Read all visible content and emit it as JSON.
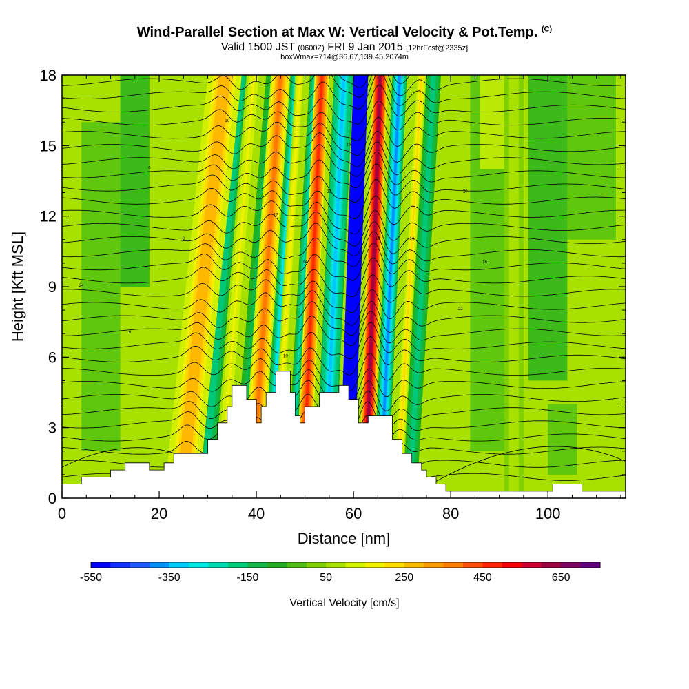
{
  "header": {
    "title": "Wind-Parallel Section at Max W: Vertical Velocity & Pot.Temp.",
    "copyright": "(C)",
    "valid_prefix": "Valid 1500 JST",
    "valid_utc": "(0600Z)",
    "valid_date": "FRI 9 Jan 2015",
    "forecast": "[12hrFcst@2335z]",
    "box_info": "boxWmax=714@36.67,139.45,2074m"
  },
  "chart_data": {
    "type": "heatmap",
    "xlabel": "Distance [nm]",
    "ylabel": "Height [Kft MSL]",
    "xlim": [
      0,
      116
    ],
    "ylim": [
      0,
      18
    ],
    "x_ticks": [
      0,
      20,
      40,
      60,
      80,
      100
    ],
    "y_ticks": [
      0,
      3,
      6,
      9,
      12,
      15,
      18
    ],
    "terrain": [
      [
        0,
        0.6
      ],
      [
        4,
        0.6
      ],
      [
        4,
        0.9
      ],
      [
        10,
        0.9
      ],
      [
        10,
        1.2
      ],
      [
        13,
        1.2
      ],
      [
        13,
        1.5
      ],
      [
        18,
        1.5
      ],
      [
        18,
        1.2
      ],
      [
        21,
        1.2
      ],
      [
        21,
        1.5
      ],
      [
        23,
        1.5
      ],
      [
        23,
        1.9
      ],
      [
        30,
        1.9
      ],
      [
        30,
        2.5
      ],
      [
        32,
        2.5
      ],
      [
        32,
        3.2
      ],
      [
        34,
        3.2
      ],
      [
        34,
        3.9
      ],
      [
        35,
        3.9
      ],
      [
        35,
        4.8
      ],
      [
        38,
        4.8
      ],
      [
        38,
        4.2
      ],
      [
        40,
        4.2
      ],
      [
        40,
        3.2
      ],
      [
        41,
        3.2
      ],
      [
        41,
        3.9
      ],
      [
        42,
        3.9
      ],
      [
        42,
        4.5
      ],
      [
        44,
        4.5
      ],
      [
        44,
        5.4
      ],
      [
        47,
        5.4
      ],
      [
        47,
        4.5
      ],
      [
        48,
        4.5
      ],
      [
        48,
        3.5
      ],
      [
        49,
        3.5
      ],
      [
        49,
        3.2
      ],
      [
        50,
        3.2
      ],
      [
        50,
        3.9
      ],
      [
        53,
        3.9
      ],
      [
        53,
        4.5
      ],
      [
        57,
        4.5
      ],
      [
        57,
        4.8
      ],
      [
        59,
        4.8
      ],
      [
        59,
        4.2
      ],
      [
        61,
        4.2
      ],
      [
        61,
        3.2
      ],
      [
        63,
        3.2
      ],
      [
        63,
        3.5
      ],
      [
        68,
        3.5
      ],
      [
        68,
        2.5
      ],
      [
        70,
        2.5
      ],
      [
        70,
        1.9
      ],
      [
        72,
        1.9
      ],
      [
        72,
        1.5
      ],
      [
        74,
        1.5
      ],
      [
        74,
        1.2
      ],
      [
        75,
        1.2
      ],
      [
        75,
        0.9
      ],
      [
        77,
        0.9
      ],
      [
        77,
        0.6
      ],
      [
        79,
        0.6
      ],
      [
        79,
        0.3
      ],
      [
        101,
        0.3
      ],
      [
        101,
        0.6
      ],
      [
        107,
        0.6
      ],
      [
        107,
        0.3
      ],
      [
        116,
        0.3
      ]
    ],
    "updraft_bands": [
      {
        "x0": 21,
        "x1": 28,
        "tilt": 9,
        "w": 320
      },
      {
        "x0": 31,
        "x1": 34,
        "tilt": 7,
        "w": 180
      },
      {
        "x0": 37,
        "x1": 41,
        "tilt": 6,
        "w": 420
      },
      {
        "x0": 43,
        "x1": 45,
        "tilt": 5,
        "w": 200
      },
      {
        "x0": 48,
        "x1": 51,
        "tilt": 4,
        "w": 560
      },
      {
        "x0": 61,
        "x1": 64,
        "tilt": 3,
        "w": 714
      },
      {
        "x0": 68,
        "x1": 70,
        "tilt": 5,
        "w": 250
      },
      {
        "x0": 91,
        "x1": 95,
        "tilt": 0,
        "w": 80
      }
    ],
    "downdraft_bands": [
      {
        "x0": 27,
        "x1": 31,
        "tilt": 8,
        "w": -200
      },
      {
        "x0": 35,
        "x1": 38,
        "tilt": 7,
        "w": -150
      },
      {
        "x0": 41,
        "x1": 44,
        "tilt": 6,
        "w": -320
      },
      {
        "x0": 46,
        "x1": 48,
        "tilt": 5,
        "w": -250
      },
      {
        "x0": 52,
        "x1": 56,
        "tilt": 4,
        "w": -350
      },
      {
        "x0": 57,
        "x1": 60,
        "tilt": 3,
        "w": -560
      },
      {
        "x0": 64,
        "x1": 67,
        "tilt": 4,
        "w": -400
      },
      {
        "x0": 70,
        "x1": 73,
        "tilt": 5,
        "w": -200
      }
    ],
    "theta_label_values": [
      "6",
      "8",
      "10",
      "12",
      "14",
      "16",
      "18",
      "20",
      "22",
      "24"
    ],
    "colorbar": {
      "title": "Vertical Velocity [cm/s]",
      "min": -550,
      "max": 750,
      "step": 50,
      "tick_labels": [
        "-550",
        "-350",
        "-150",
        "50",
        "250",
        "450",
        "650"
      ],
      "colors": [
        "#0000ff",
        "#0f2fff",
        "#1e5aff",
        "#0090ff",
        "#00c8ff",
        "#00e6e6",
        "#00d9b0",
        "#00c878",
        "#10b848",
        "#20b020",
        "#4cc010",
        "#80d000",
        "#a8e000",
        "#d0f000",
        "#f0f000",
        "#ffd800",
        "#ffb800",
        "#ff9800",
        "#ff7800",
        "#ff5000",
        "#ff2800",
        "#f00000",
        "#c80030",
        "#a00040",
        "#800060",
        "#600080"
      ]
    }
  }
}
